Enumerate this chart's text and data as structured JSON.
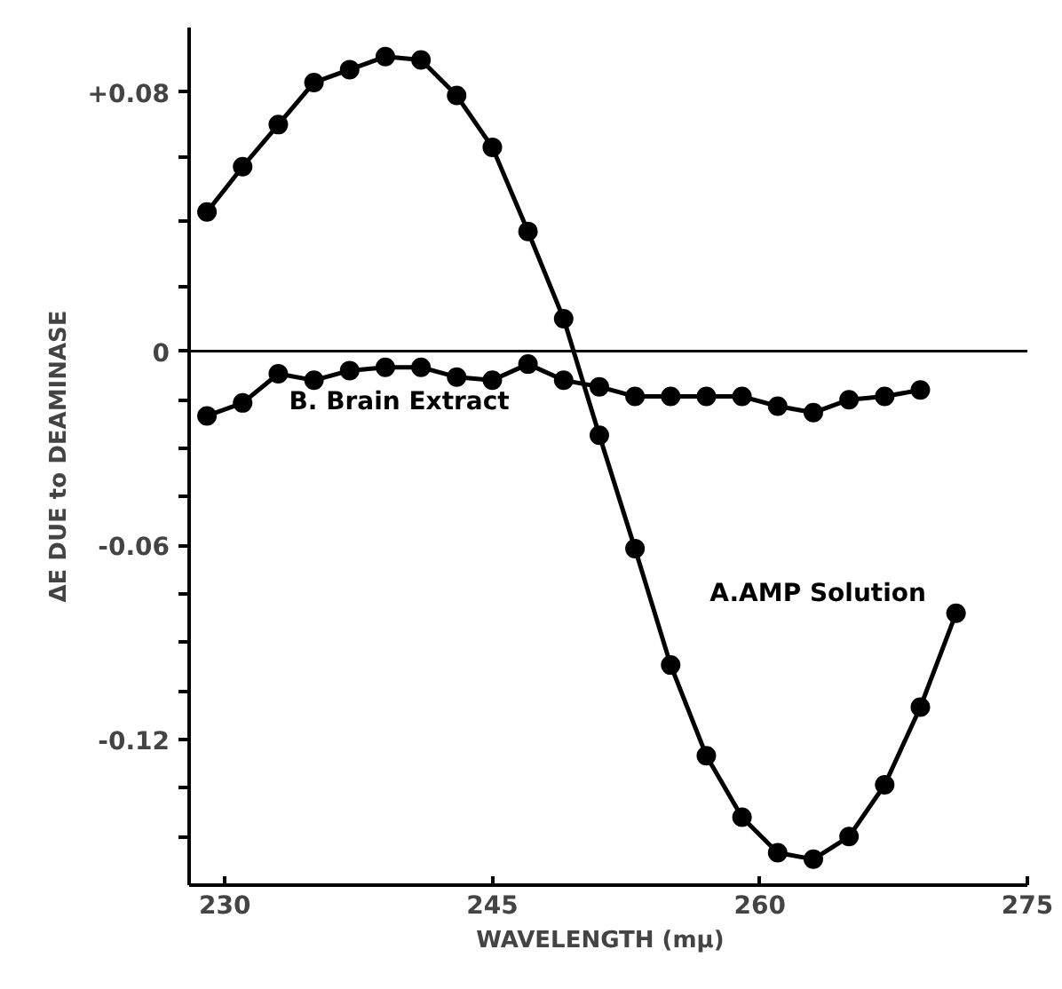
{
  "chart_data": {
    "type": "line",
    "xlabel": "WAVELENGTH   (mμ)",
    "ylabel": "ΔE DUE to DEAMINASE",
    "xlim": [
      228,
      275
    ],
    "xticks": [
      230,
      245,
      260,
      275
    ],
    "ylim": [
      -0.165,
      0.1
    ],
    "yticks": [
      {
        "value": 0.08,
        "label": "+0.08"
      },
      {
        "value": 0.06,
        "label": null
      },
      {
        "value": 0.04,
        "label": null
      },
      {
        "value": 0.02,
        "label": null
      },
      0,
      {
        "value": -0.015,
        "label": null
      },
      {
        "value": -0.03,
        "label": null
      },
      {
        "value": -0.045,
        "label": null
      },
      {
        "value": -0.06,
        "label": "-0.06"
      },
      {
        "value": -0.075,
        "label": null
      },
      {
        "value": -0.09,
        "label": null
      },
      {
        "value": -0.105,
        "label": null
      },
      {
        "value": -0.12,
        "label": "-0.12"
      },
      {
        "value": -0.135,
        "label": null
      },
      {
        "value": -0.15,
        "label": null
      }
    ],
    "marker": "circle",
    "line_style": "solid",
    "grid": false,
    "legend": false,
    "ref_lines": [
      {
        "axis": "y",
        "value": 0,
        "label": null,
        "color": "#000000"
      }
    ],
    "series": [
      {
        "name": "A.AMP Solution",
        "color": "#000000",
        "x": [
          229,
          231,
          233,
          235,
          237,
          239,
          241,
          243,
          245,
          247,
          249,
          251,
          253,
          255,
          257,
          259,
          261,
          263,
          265,
          267,
          269,
          271
        ],
        "values": [
          0.043,
          0.057,
          0.07,
          0.083,
          0.087,
          0.091,
          0.09,
          0.079,
          0.063,
          0.037,
          0.01,
          -0.026,
          -0.061,
          -0.097,
          -0.125,
          -0.144,
          -0.155,
          -0.157,
          -0.15,
          -0.134,
          -0.11,
          -0.081
        ]
      },
      {
        "name": "B. Brain Extract",
        "color": "#000000",
        "x": [
          229,
          231,
          233,
          235,
          237,
          239,
          241,
          243,
          245,
          247,
          249,
          251,
          253,
          255,
          257,
          259,
          261,
          263,
          265,
          267,
          269
        ],
        "values": [
          -0.02,
          -0.016,
          -0.007,
          -0.009,
          -0.006,
          -0.005,
          -0.005,
          -0.008,
          -0.009,
          -0.004,
          -0.009,
          -0.011,
          -0.014,
          -0.014,
          -0.014,
          -0.014,
          -0.017,
          -0.019,
          -0.015,
          -0.014,
          -0.012
        ]
      }
    ]
  }
}
